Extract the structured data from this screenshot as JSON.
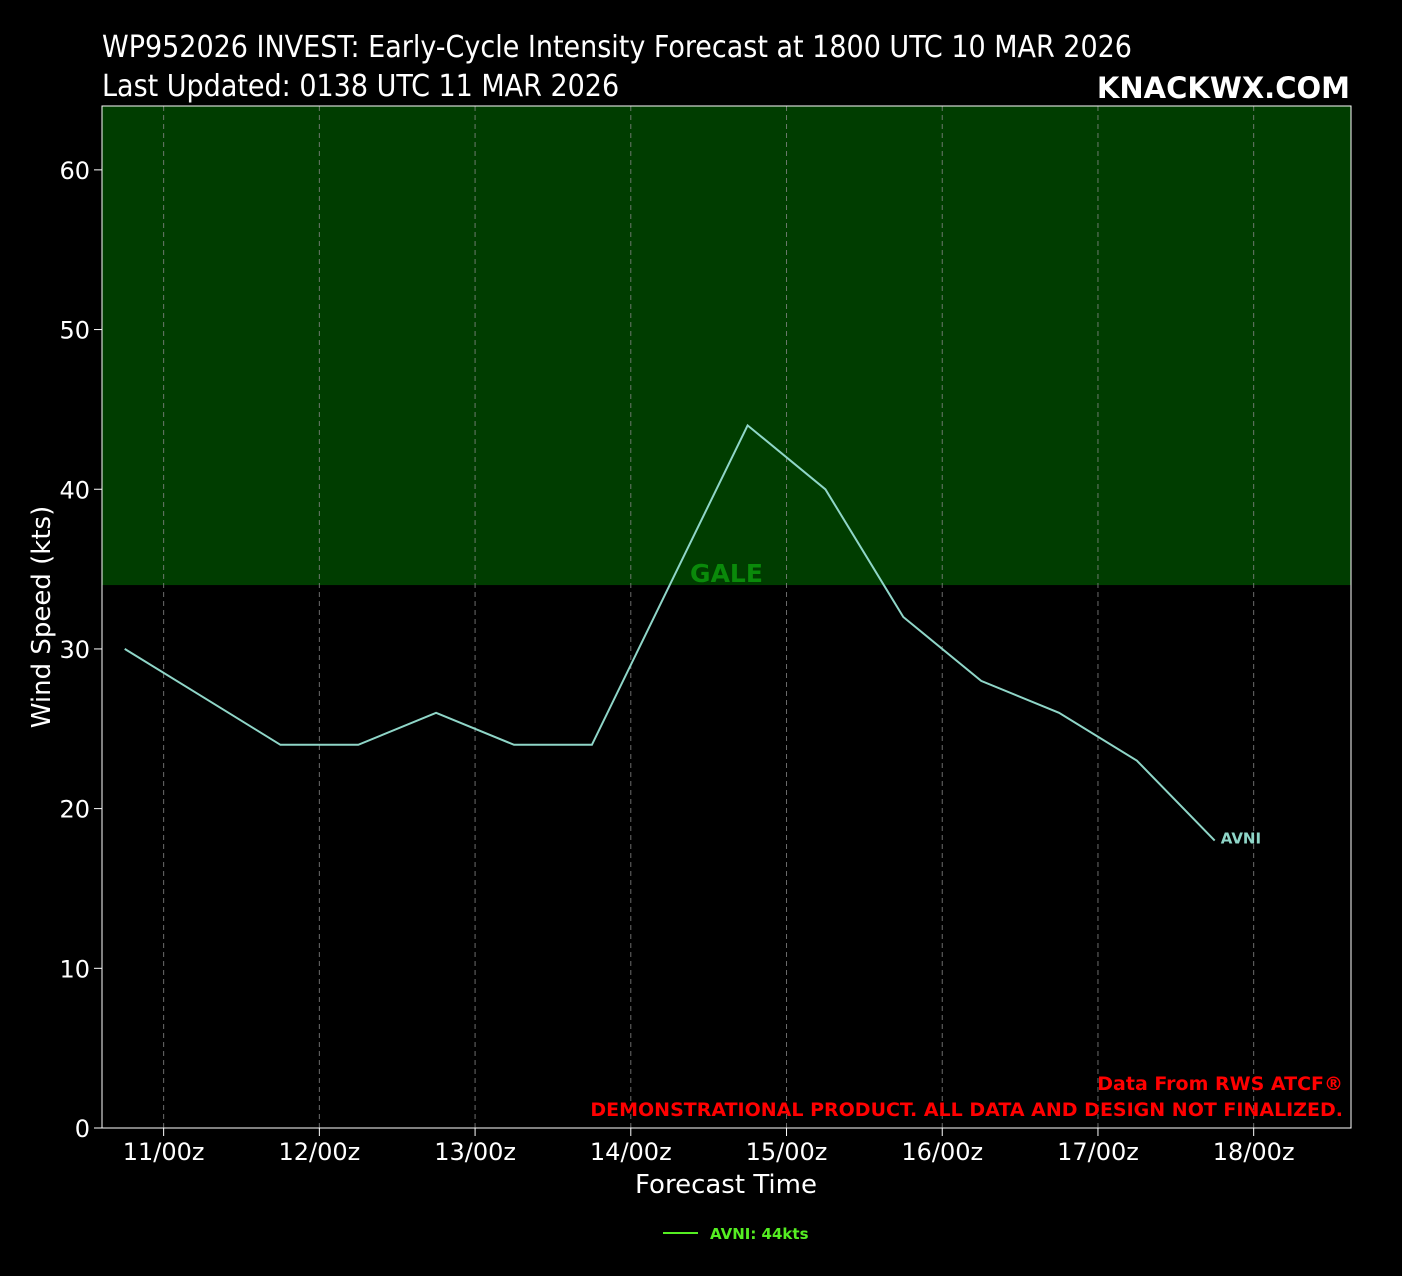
{
  "header": {
    "title_line1": "WP952026 INVEST: Early-Cycle Intensity Forecast at 1800 UTC 10 MAR 2026",
    "title_line2": "Last Updated: 0138 UTC 11 MAR 2026",
    "brand": "KNACKWX.COM"
  },
  "colors": {
    "background": "#000000",
    "gale_band": "#003d00",
    "gale_label": "#0a8a0a",
    "series_line": "#8fd6c8",
    "legend_line": "#55ee22",
    "note": "#ff0000",
    "grid": "#888888"
  },
  "footer": {
    "note_line1": "Data From RWS ATCF®",
    "note_line2": "DEMONSTRATIONAL PRODUCT. ALL DATA AND DESIGN NOT FINALIZED."
  },
  "chart_data": {
    "type": "line",
    "xlabel": "Forecast Time",
    "ylabel": "Wind Speed (kts)",
    "x_unit": "forecast hours after 1800 UTC 10 MAR 2026",
    "xlim": [
      -3.5,
      189
    ],
    "ylim": [
      0,
      64
    ],
    "x_ticks": [
      {
        "label": "11/00z",
        "x": 6
      },
      {
        "label": "12/00z",
        "x": 30
      },
      {
        "label": "13/00z",
        "x": 54
      },
      {
        "label": "14/00z",
        "x": 78
      },
      {
        "label": "15/00z",
        "x": 102
      },
      {
        "label": "16/00z",
        "x": 126
      },
      {
        "label": "17/00z",
        "x": 150
      },
      {
        "label": "18/00z",
        "x": 174
      }
    ],
    "y_ticks": [
      0,
      10,
      20,
      30,
      40,
      50,
      60
    ],
    "grid": "vertical dashed lines at x ticks",
    "threshold_band": {
      "label": "GALE",
      "from": 34,
      "to": 64
    },
    "series": [
      {
        "name": "AVNI",
        "end_label": "AVNI",
        "x": [
          0,
          12,
          24,
          36,
          48,
          60,
          72,
          84,
          96,
          108,
          120,
          132,
          144,
          156,
          168
        ],
        "y": [
          30,
          27,
          24,
          24,
          26,
          24,
          24,
          34,
          44,
          40,
          32,
          28,
          26,
          23,
          18
        ]
      }
    ],
    "legend": {
      "position": "bottom-center",
      "entries": [
        "AVNI: 44kts"
      ]
    }
  }
}
